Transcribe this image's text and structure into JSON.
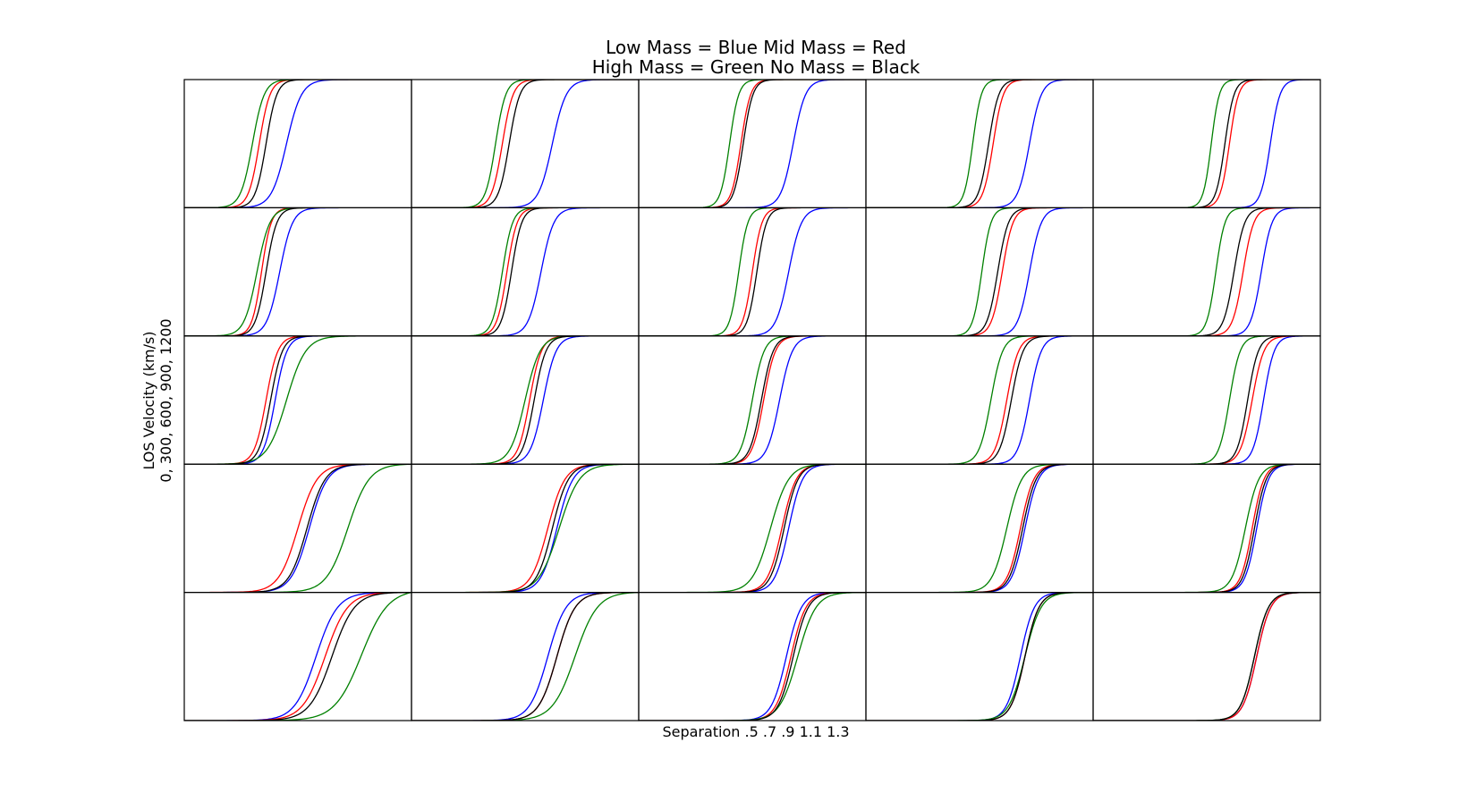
{
  "title_lines": [
    "Low Mass = Blue   Mid Mass = Red",
    "High Mass = Green   No Mass = Black"
  ],
  "xlabel": "Separation .5 .7 .9 1.1 1.3",
  "ylabel_lines": [
    "LOS Velocity (km/s)",
    "0, 300, 600, 900, 1200"
  ],
  "colors": {
    "low": "#0000ff",
    "mid": "#ff0000",
    "high": "#008000",
    "none": "#000000"
  },
  "chart_data": {
    "type": "line",
    "layout": "5x5 grid of cumulative distribution panels, no tick labels",
    "grid": false,
    "legend": "title text",
    "series_order": [
      "Low Mass",
      "Mid Mass",
      "High Mass",
      "No Mass"
    ],
    "series_colors": [
      "#0000ff",
      "#ff0000",
      "#008000",
      "#000000"
    ],
    "panels": [
      {
        "row": 0,
        "col": 0,
        "median": [
          0.45,
          0.33,
          0.3,
          0.36
        ],
        "width": [
          0.28,
          0.2,
          0.22,
          0.2
        ]
      },
      {
        "row": 0,
        "col": 1,
        "median": [
          0.62,
          0.4,
          0.37,
          0.43
        ],
        "width": [
          0.26,
          0.2,
          0.19,
          0.2
        ]
      },
      {
        "row": 0,
        "col": 2,
        "median": [
          0.68,
          0.45,
          0.4,
          0.46
        ],
        "width": [
          0.23,
          0.18,
          0.17,
          0.18
        ]
      },
      {
        "row": 0,
        "col": 3,
        "median": [
          0.72,
          0.56,
          0.47,
          0.54
        ],
        "width": [
          0.22,
          0.19,
          0.16,
          0.19
        ]
      },
      {
        "row": 0,
        "col": 4,
        "median": [
          0.78,
          0.6,
          0.52,
          0.58
        ],
        "width": [
          0.18,
          0.17,
          0.15,
          0.17
        ]
      },
      {
        "row": 1,
        "col": 0,
        "median": [
          0.42,
          0.34,
          0.32,
          0.36
        ],
        "width": [
          0.24,
          0.18,
          0.24,
          0.2
        ]
      },
      {
        "row": 1,
        "col": 1,
        "median": [
          0.57,
          0.42,
          0.4,
          0.44
        ],
        "width": [
          0.24,
          0.19,
          0.19,
          0.19
        ]
      },
      {
        "row": 1,
        "col": 2,
        "median": [
          0.66,
          0.5,
          0.44,
          0.52
        ],
        "width": [
          0.24,
          0.18,
          0.17,
          0.18
        ]
      },
      {
        "row": 1,
        "col": 3,
        "median": [
          0.72,
          0.6,
          0.51,
          0.58
        ],
        "width": [
          0.22,
          0.2,
          0.17,
          0.2
        ]
      },
      {
        "row": 1,
        "col": 4,
        "median": [
          0.74,
          0.66,
          0.54,
          0.62
        ],
        "width": [
          0.2,
          0.2,
          0.17,
          0.2
        ]
      },
      {
        "row": 2,
        "col": 0,
        "median": [
          0.4,
          0.36,
          0.45,
          0.38
        ],
        "width": [
          0.22,
          0.22,
          0.36,
          0.22
        ]
      },
      {
        "row": 2,
        "col": 1,
        "median": [
          0.58,
          0.52,
          0.5,
          0.54
        ],
        "width": [
          0.24,
          0.22,
          0.28,
          0.22
        ]
      },
      {
        "row": 2,
        "col": 2,
        "median": [
          0.62,
          0.55,
          0.5,
          0.54
        ],
        "width": [
          0.24,
          0.22,
          0.22,
          0.22
        ]
      },
      {
        "row": 2,
        "col": 3,
        "median": [
          0.72,
          0.62,
          0.55,
          0.64
        ],
        "width": [
          0.22,
          0.22,
          0.22,
          0.22
        ]
      },
      {
        "row": 2,
        "col": 4,
        "median": [
          0.75,
          0.7,
          0.6,
          0.68
        ],
        "width": [
          0.2,
          0.22,
          0.2,
          0.2
        ]
      },
      {
        "row": 3,
        "col": 0,
        "median": [
          0.55,
          0.5,
          0.72,
          0.54
        ],
        "width": [
          0.34,
          0.36,
          0.4,
          0.34
        ]
      },
      {
        "row": 3,
        "col": 1,
        "median": [
          0.64,
          0.6,
          0.65,
          0.62
        ],
        "width": [
          0.3,
          0.32,
          0.38,
          0.3
        ]
      },
      {
        "row": 3,
        "col": 2,
        "median": [
          0.66,
          0.63,
          0.58,
          0.64
        ],
        "width": [
          0.26,
          0.27,
          0.34,
          0.26
        ]
      },
      {
        "row": 3,
        "col": 3,
        "median": [
          0.7,
          0.68,
          0.62,
          0.69
        ],
        "width": [
          0.25,
          0.25,
          0.28,
          0.25
        ]
      },
      {
        "row": 3,
        "col": 4,
        "median": [
          0.72,
          0.7,
          0.67,
          0.71
        ],
        "width": [
          0.22,
          0.22,
          0.25,
          0.22
        ]
      },
      {
        "row": 4,
        "col": 0,
        "median": [
          0.58,
          0.62,
          0.78,
          0.65
        ],
        "width": [
          0.4,
          0.42,
          0.5,
          0.42
        ]
      },
      {
        "row": 4,
        "col": 1,
        "median": [
          0.6,
          0.64,
          0.72,
          0.64
        ],
        "width": [
          0.34,
          0.34,
          0.42,
          0.34
        ]
      },
      {
        "row": 4,
        "col": 2,
        "median": [
          0.65,
          0.67,
          0.7,
          0.68
        ],
        "width": [
          0.28,
          0.28,
          0.34,
          0.28
        ]
      },
      {
        "row": 4,
        "col": 3,
        "median": [
          0.68,
          0.7,
          0.7,
          0.7
        ],
        "width": [
          0.26,
          0.26,
          0.3,
          0.26
        ]
      },
      {
        "row": 4,
        "col": 4,
        "median": [
          0.72,
          0.72,
          0.71,
          0.71
        ],
        "width": [
          0.26,
          0.26,
          0.26,
          0.26
        ]
      }
    ]
  }
}
